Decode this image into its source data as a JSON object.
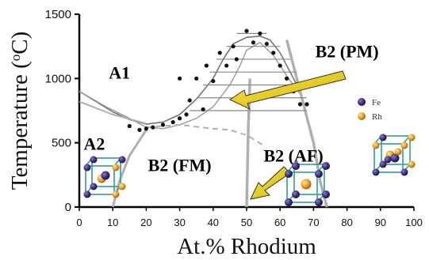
{
  "chart_data": {
    "type": "phase-diagram",
    "xlabel": "At.% Rhodium",
    "ylabel": "Temperature (",
    "ylabel_sup": "o",
    "ylabel_end": "C)",
    "xlim": [
      0,
      100
    ],
    "ylim": [
      0,
      1500
    ],
    "x_ticks": [
      "0",
      "10",
      "20",
      "30",
      "40",
      "50",
      "60",
      "70",
      "80",
      "90",
      "100"
    ],
    "y_ticks": [
      "0",
      "500",
      "1000",
      "1500"
    ],
    "phase_labels": [
      {
        "name": "phase-a1",
        "text": "A1",
        "x": 12,
        "y": 1000
      },
      {
        "name": "phase-a2",
        "text": "A2",
        "x": 4.5,
        "y": 445
      },
      {
        "name": "phase-b2-fm",
        "text": "B2 (FM)",
        "x": 30,
        "y": 280
      },
      {
        "name": "phase-b2-pm",
        "text": "B2 (PM)",
        "x": 80,
        "y": 1165
      },
      {
        "name": "phase-b2-af",
        "text": "B2 (AF)",
        "x": 64,
        "y": 355
      }
    ],
    "legend": [
      {
        "name": "Fe",
        "color": "#3a2a78"
      },
      {
        "name": "Rh",
        "color": "#e0a030"
      }
    ],
    "colors": {
      "atom_fe": "#3a2a78",
      "atom_rh": "#e0a030",
      "arrow_fill": "#e8d020",
      "cell_edge": "#2aa198",
      "phase_line": "#b0b0b0"
    },
    "liquidus_points": [
      [
        0,
        900
      ],
      [
        5,
        820
      ],
      [
        10,
        740
      ],
      [
        15,
        680
      ],
      [
        20,
        645
      ],
      [
        25,
        660
      ],
      [
        30,
        720
      ],
      [
        35,
        840
      ],
      [
        40,
        1000
      ],
      [
        43,
        1150
      ],
      [
        46,
        1270
      ],
      [
        50,
        1320
      ],
      [
        54,
        1330
      ],
      [
        57,
        1300
      ],
      [
        60,
        1200
      ],
      [
        63,
        1050
      ],
      [
        66,
        900
      ]
    ],
    "solidus_points": [
      [
        0,
        900
      ],
      [
        8,
        780
      ],
      [
        15,
        690
      ],
      [
        20,
        620
      ],
      [
        25,
        610
      ],
      [
        30,
        640
      ],
      [
        35,
        690
      ],
      [
        40,
        780
      ],
      [
        45,
        950
      ],
      [
        48,
        1100
      ],
      [
        50,
        1220
      ],
      [
        54,
        1280
      ],
      [
        58,
        1180
      ],
      [
        62,
        1020
      ],
      [
        66,
        880
      ]
    ],
    "data_points": [
      [
        15,
        630
      ],
      [
        18,
        600
      ],
      [
        20,
        610
      ],
      [
        22,
        620
      ],
      [
        25,
        640
      ],
      [
        28,
        660
      ],
      [
        30,
        690
      ],
      [
        32,
        720
      ],
      [
        30,
        1000
      ],
      [
        33,
        830
      ],
      [
        35,
        1000
      ],
      [
        37,
        760
      ],
      [
        38,
        1100
      ],
      [
        40,
        980
      ],
      [
        42,
        1200
      ],
      [
        44,
        1100
      ],
      [
        46,
        1250
      ],
      [
        47,
        1150
      ],
      [
        50,
        1370
      ],
      [
        52,
        1280
      ],
      [
        54,
        1350
      ],
      [
        56,
        1270
      ],
      [
        58,
        1200
      ],
      [
        60,
        1100
      ],
      [
        62,
        1000
      ],
      [
        64,
        900
      ],
      [
        66,
        800
      ],
      [
        68,
        800
      ]
    ],
    "tie_lines_y": [
      1350,
      1250,
      1150,
      1050,
      950,
      850,
      750
    ],
    "tie_lines_x_left": [
      47,
      44,
      41,
      39,
      37,
      35,
      33
    ],
    "tie_lines_x_right": [
      56,
      60,
      63,
      65,
      67,
      68,
      68
    ],
    "ferro_boundary_points": [
      [
        10,
        0
      ],
      [
        12,
        200
      ],
      [
        15,
        400
      ],
      [
        18,
        520
      ],
      [
        20,
        600
      ]
    ],
    "curie_line_points": [
      [
        20,
        620
      ],
      [
        30,
        640
      ],
      [
        40,
        610
      ],
      [
        45,
        600
      ],
      [
        50,
        560
      ],
      [
        55,
        480
      ]
    ],
    "af_boundary_left": [
      [
        51,
        1000
      ],
      [
        50.5,
        600
      ],
      [
        50,
        0
      ]
    ],
    "af_boundary_right": [
      [
        62,
        1300
      ],
      [
        66,
        900
      ],
      [
        70,
        500
      ],
      [
        72,
        200
      ],
      [
        74,
        0
      ]
    ],
    "af_upper_right": [
      [
        62,
        1300
      ],
      [
        65,
        1150
      ],
      [
        68,
        950
      ]
    ]
  }
}
